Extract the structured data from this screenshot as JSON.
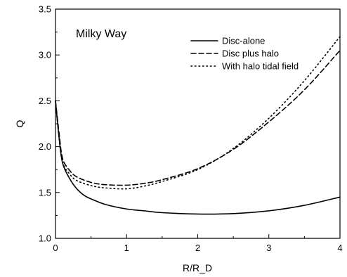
{
  "chart_data": {
    "type": "line",
    "title": "",
    "annotation": "Milky Way",
    "xlabel": "R/R_D",
    "ylabel": "Q",
    "xlim": [
      0,
      4
    ],
    "ylim": [
      1.0,
      3.5
    ],
    "x_ticks": [
      "0",
      "1",
      "2",
      "3",
      "4"
    ],
    "y_ticks": [
      "1.0",
      "1.5",
      "2.0",
      "2.5",
      "3.0",
      "3.5"
    ],
    "grid": false,
    "legend_position": "top-right",
    "series": [
      {
        "name": "Disc-alone",
        "style": "solid",
        "x": [
          0.0,
          0.05,
          0.1,
          0.2,
          0.3,
          0.4,
          0.5,
          0.7,
          1.0,
          1.25,
          1.5,
          2.0,
          2.5,
          3.0,
          3.5,
          4.0
        ],
        "y": [
          2.5,
          2.1,
          1.82,
          1.65,
          1.54,
          1.47,
          1.43,
          1.37,
          1.32,
          1.3,
          1.28,
          1.265,
          1.27,
          1.3,
          1.36,
          1.45
        ]
      },
      {
        "name": "Disc plus halo",
        "style": "dashed",
        "x": [
          0.0,
          0.05,
          0.1,
          0.2,
          0.3,
          0.5,
          0.7,
          1.0,
          1.25,
          1.5,
          2.0,
          2.5,
          3.0,
          3.5,
          4.0
        ],
        "y": [
          2.5,
          2.15,
          1.87,
          1.74,
          1.67,
          1.61,
          1.585,
          1.58,
          1.6,
          1.64,
          1.76,
          1.97,
          2.27,
          2.62,
          3.05
        ]
      },
      {
        "name": "With halo tidal field",
        "style": "dotted",
        "x": [
          0.0,
          0.05,
          0.1,
          0.2,
          0.3,
          0.5,
          0.7,
          1.0,
          1.25,
          1.5,
          2.0,
          2.5,
          3.0,
          3.5,
          4.0
        ],
        "y": [
          2.5,
          2.1,
          1.83,
          1.7,
          1.63,
          1.575,
          1.55,
          1.54,
          1.57,
          1.62,
          1.75,
          1.98,
          2.31,
          2.72,
          3.2
        ]
      }
    ]
  }
}
